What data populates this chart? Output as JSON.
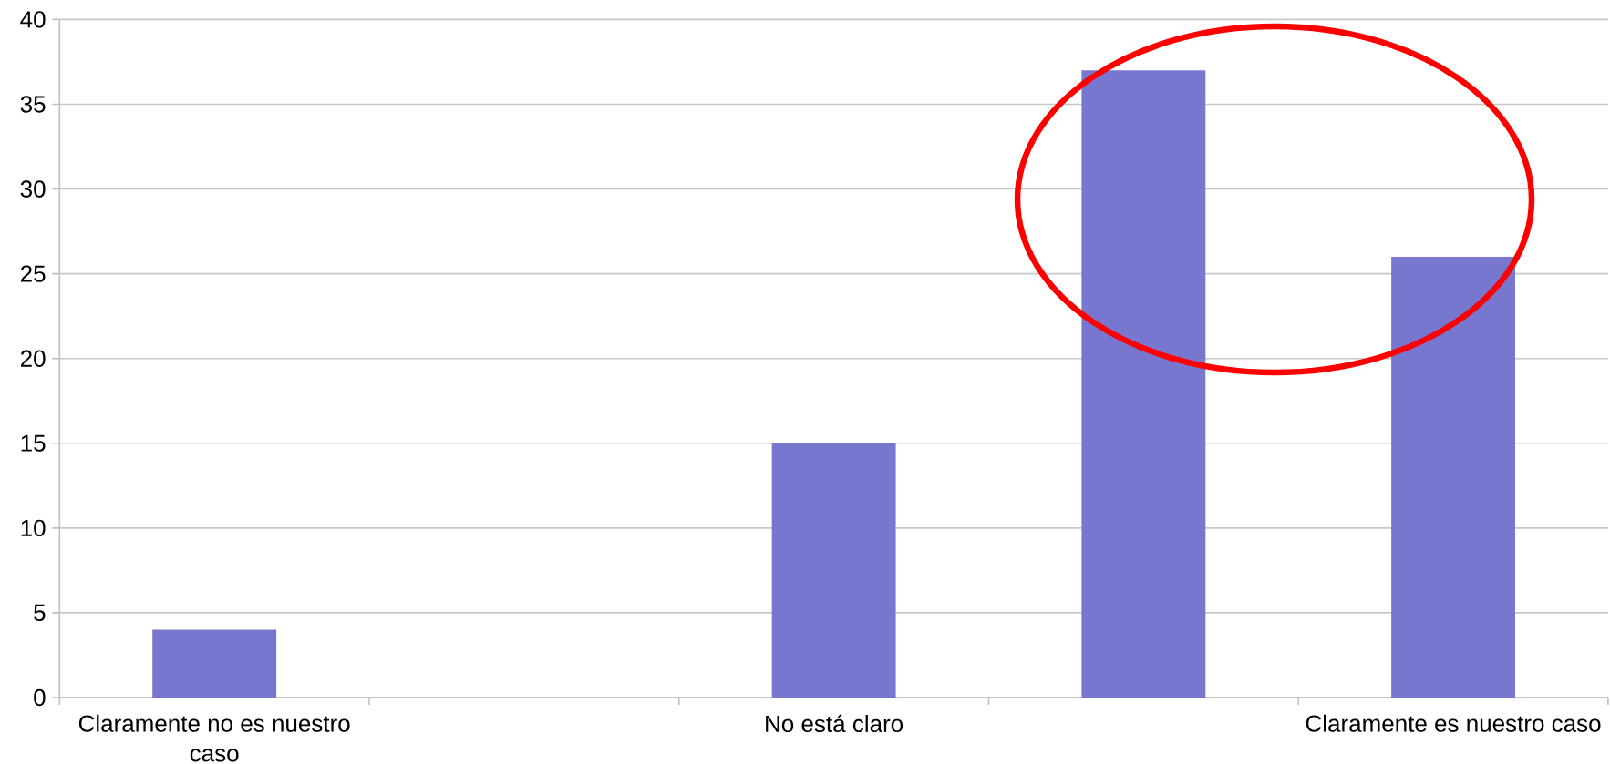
{
  "chart_data": {
    "type": "bar",
    "categories": [
      "Claramente no es nuestro caso",
      null,
      "No está claro",
      null,
      "Claramente es nuestro caso"
    ],
    "values": [
      4,
      null,
      15,
      37,
      26
    ],
    "color": "#7777cf",
    "ylim": [
      0,
      40
    ],
    "yticks": [
      0,
      5,
      10,
      15,
      20,
      25,
      30,
      35,
      40
    ],
    "grid": "y"
  }
}
